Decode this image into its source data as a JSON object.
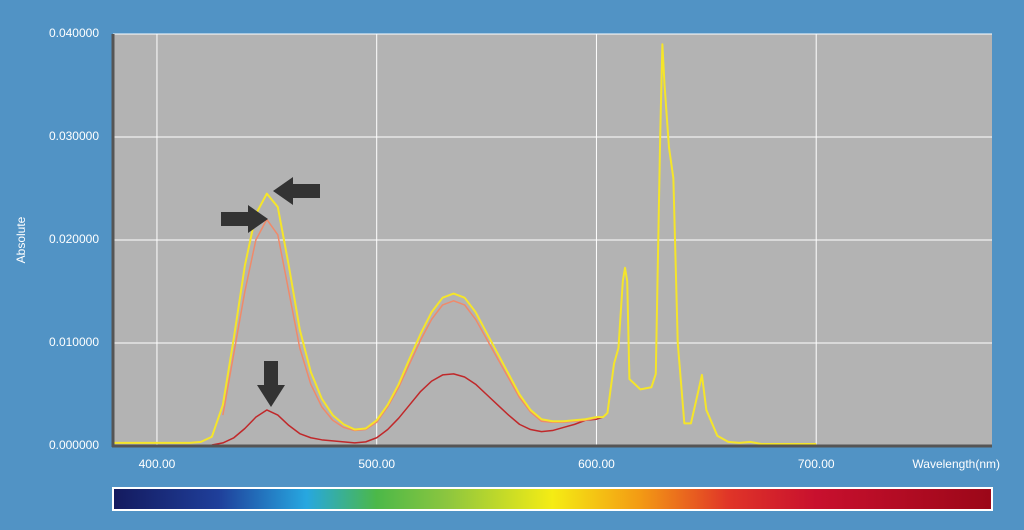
{
  "chart_data": {
    "type": "line",
    "x_label": "Wavelength(nm)",
    "y_label": "Absolute",
    "xlim": [
      380,
      780
    ],
    "ylim": [
      0,
      0.04
    ],
    "grid": true,
    "xticks": [
      {
        "value": 400,
        "label": "400.00"
      },
      {
        "value": 500,
        "label": "500.00"
      },
      {
        "value": 600,
        "label": "600.00"
      },
      {
        "value": 700,
        "label": "700.00"
      }
    ],
    "yticks": [
      {
        "value": 0,
        "label": "0.000000"
      },
      {
        "value": 0.01,
        "label": "0.010000"
      },
      {
        "value": 0.02,
        "label": "0.020000"
      },
      {
        "value": 0.03,
        "label": "0.030000"
      },
      {
        "value": 0.04,
        "label": "0.040000"
      }
    ],
    "x": [
      380,
      385,
      390,
      395,
      400,
      405,
      410,
      415,
      420,
      425,
      430,
      435,
      440,
      445,
      450,
      455,
      460,
      465,
      470,
      475,
      480,
      485,
      490,
      495,
      500,
      505,
      510,
      515,
      520,
      525,
      530,
      535,
      540,
      545,
      550,
      555,
      560,
      565,
      570,
      575,
      580,
      585,
      590,
      595,
      600,
      603,
      605,
      608,
      610,
      612,
      613,
      614,
      615,
      620,
      625,
      627,
      629,
      630,
      631,
      633,
      635,
      637,
      640,
      643,
      646,
      648,
      650,
      655,
      660,
      665,
      670,
      675,
      680,
      690,
      700
    ],
    "series": [
      {
        "color": "#c0282a",
        "values": [
          null,
          null,
          null,
          null,
          null,
          null,
          null,
          null,
          null,
          0.0001,
          0.0003,
          0.0008,
          0.0017,
          0.0028,
          0.0035,
          0.003,
          0.002,
          0.0012,
          0.0008,
          0.0006,
          0.0005,
          0.0004,
          0.0003,
          0.0004,
          0.0008,
          0.0016,
          0.0027,
          0.004,
          0.0053,
          0.0063,
          0.0069,
          0.007,
          0.0067,
          0.006,
          0.005,
          0.004,
          0.003,
          0.0021,
          0.0016,
          0.0014,
          0.0015,
          0.0018,
          0.0021,
          0.0025,
          0.0026,
          0.0028,
          null,
          null,
          null,
          null,
          null,
          null,
          null,
          null,
          null,
          null,
          null,
          null,
          null,
          null,
          null,
          null,
          null,
          null,
          null,
          null,
          null,
          null,
          null,
          null,
          null,
          null,
          null,
          null,
          null
        ]
      },
      {
        "color": "#f08a6a",
        "values": [
          null,
          null,
          null,
          null,
          null,
          null,
          null,
          null,
          null,
          null,
          0.003,
          0.009,
          0.015,
          0.02,
          0.022,
          0.0205,
          0.015,
          0.0095,
          0.006,
          0.0038,
          0.0025,
          0.0018,
          0.0015,
          0.0016,
          0.0023,
          0.0038,
          0.0057,
          0.008,
          0.0103,
          0.0123,
          0.0137,
          0.0141,
          0.0137,
          0.0123,
          0.0104,
          0.0085,
          0.0066,
          0.0047,
          0.0033,
          0.0024,
          0.0023,
          0.0023,
          0.0024,
          0.0025,
          0.0027,
          null,
          null,
          null,
          null,
          null,
          null,
          null,
          null,
          null,
          null,
          null,
          null,
          null,
          null,
          null,
          null,
          null,
          null,
          null,
          null,
          null,
          null,
          null,
          null,
          null,
          null,
          null,
          null,
          null,
          null
        ]
      },
      {
        "color": "#f5e52a",
        "values": [
          0.0003,
          0.0003,
          0.0003,
          0.0003,
          0.0003,
          0.0003,
          0.0003,
          0.0003,
          0.0004,
          0.0009,
          0.004,
          0.0105,
          0.0175,
          0.0225,
          0.0245,
          0.0232,
          0.0175,
          0.0113,
          0.0072,
          0.0046,
          0.003,
          0.0021,
          0.0016,
          0.0017,
          0.0025,
          0.004,
          0.006,
          0.0085,
          0.0109,
          0.013,
          0.0144,
          0.0148,
          0.0144,
          0.013,
          0.011,
          0.009,
          0.007,
          0.005,
          0.0035,
          0.0026,
          0.0024,
          0.0024,
          0.0025,
          0.0026,
          0.0028,
          0.0028,
          0.0032,
          0.008,
          0.0095,
          0.016,
          0.0173,
          0.016,
          0.0065,
          0.0055,
          0.0057,
          0.007,
          0.03,
          0.039,
          0.035,
          0.029,
          0.026,
          0.01,
          0.0022,
          0.0022,
          0.005,
          0.0069,
          0.0035,
          0.001,
          0.0004,
          0.0003,
          0.0004,
          0.0002,
          0.0002,
          0.0002,
          0.0002
        ]
      }
    ]
  }
}
